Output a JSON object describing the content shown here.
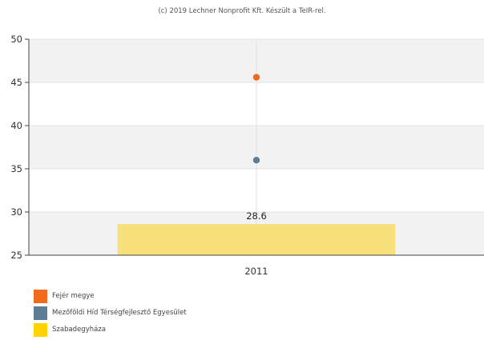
{
  "copyright": "(c) 2019 Lechner Nonprofit Kft. Készült a TeIR-rel.",
  "chart_data": {
    "type": "bar",
    "categories": [
      "2011"
    ],
    "ylim": [
      25,
      50
    ],
    "yticks": [
      25,
      30,
      35,
      40,
      45,
      50
    ],
    "grid": true,
    "legend_position": "bottom-left",
    "series": [
      {
        "name": "Fejér megye",
        "type": "scatter",
        "values": [
          45.6
        ],
        "color": "#f26a1b"
      },
      {
        "name": "Mezőföldi Híd Térségfejlesztő Egyesület",
        "type": "scatter",
        "values": [
          36.0
        ],
        "color": "#5f7d95"
      },
      {
        "name": "Szabadegyháza",
        "type": "bar",
        "values": [
          28.6
        ],
        "color": "#f7e07a",
        "swatch_color": "#ffd200",
        "data_label": "28.6"
      }
    ]
  }
}
